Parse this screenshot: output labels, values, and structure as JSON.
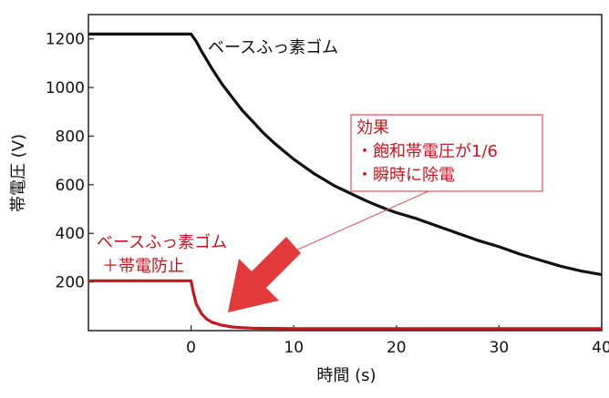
{
  "chart_data": {
    "type": "line",
    "xlabel": "時間 (s)",
    "ylabel": "帯電圧 (V)",
    "xlim": [
      -10,
      40
    ],
    "ylim": [
      0,
      1300
    ],
    "x_ticks": [
      0,
      10,
      20,
      30,
      40
    ],
    "y_ticks": [
      200,
      400,
      600,
      800,
      1000,
      1200
    ],
    "grid": false,
    "series": [
      {
        "name": "ベースふっ素ゴム",
        "color": "#111111",
        "x": [
          -10,
          -8,
          -6,
          -4,
          -2,
          0,
          0.5,
          1,
          2,
          3,
          4,
          5,
          6,
          7,
          8,
          9,
          10,
          11,
          12,
          13,
          14,
          15,
          16,
          17,
          18,
          19,
          20,
          22,
          24,
          26,
          28,
          30,
          32,
          34,
          36,
          38,
          40
        ],
        "y": [
          1220,
          1220,
          1220,
          1220,
          1220,
          1220,
          1190,
          1150,
          1080,
          1015,
          960,
          905,
          860,
          815,
          775,
          740,
          705,
          675,
          645,
          620,
          595,
          575,
          555,
          535,
          517,
          500,
          485,
          460,
          430,
          400,
          370,
          345,
          315,
          290,
          265,
          245,
          230
        ]
      },
      {
        "name": "ベースふっ素ゴム ＋帯電防止",
        "color": "#c8141e",
        "x": [
          -10,
          -8,
          -6,
          -4,
          -2,
          0,
          0.2,
          0.5,
          1,
          1.5,
          2,
          3,
          4,
          5,
          6,
          8,
          10,
          15,
          20,
          25,
          30,
          35,
          40
        ],
        "y": [
          205,
          205,
          205,
          205,
          205,
          205,
          160,
          110,
          70,
          48,
          35,
          22,
          15,
          12,
          10,
          9,
          8,
          8,
          8,
          8,
          8,
          8,
          8
        ]
      }
    ],
    "annotations": {
      "black_label": "ベースふっ素ゴム",
      "red_label_line1": "ベースふっ素ゴム",
      "red_label_line2": "＋帯電防止",
      "effect_title": "効果",
      "effect_item1": "・飽和帯電圧が1/6",
      "effect_item2": "・瞬時に除電"
    }
  }
}
